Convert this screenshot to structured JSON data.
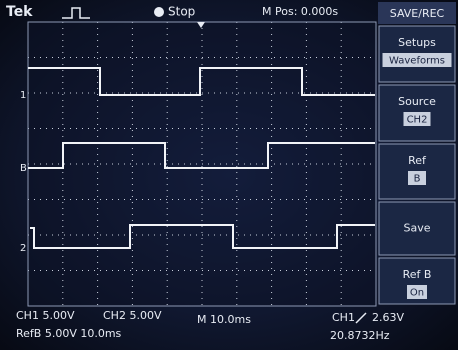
{
  "header": {
    "brand": "Tek",
    "status": "Stop",
    "m_pos": "M Pos: 0.000s"
  },
  "menu": {
    "title": "SAVE/REC",
    "items": [
      {
        "label": "Setups",
        "value": "Waveforms"
      },
      {
        "label": "Source",
        "value": "CH2"
      },
      {
        "label": "Ref",
        "value": "B"
      },
      {
        "label": "Save"
      },
      {
        "label": "Ref B",
        "value": "On"
      }
    ]
  },
  "markers": [
    "1",
    "B",
    "2"
  ],
  "footer": {
    "ch1": "CH1 5.00V",
    "ch2": "CH2 5.00V",
    "timebase": "M 10.0ms",
    "trigger_source": "CH1",
    "trigger_level": "2.63V",
    "refb": "RefB 5.00V 10.0ms",
    "frequency": "20.8732Hz"
  }
}
